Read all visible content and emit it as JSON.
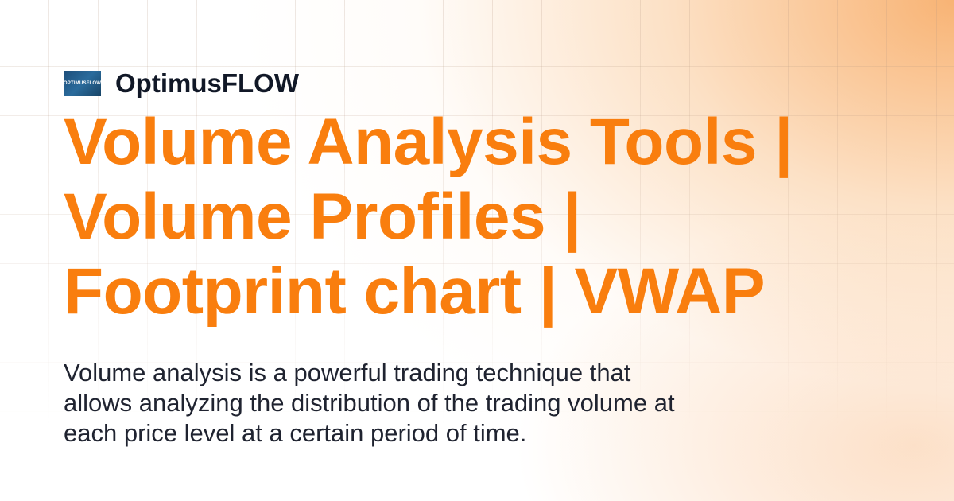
{
  "brand": {
    "name": "OptimusFLOW",
    "logo_text": "OPTIMUSFLOW"
  },
  "title_lines": [
    "Volume Analysis Tools |",
    "Volume Profiles |",
    "Footprint chart | VWAP"
  ],
  "description": "Volume analysis is a powerful trading technique that allows analyzing the distribution of the trading volume at each price level at a certain period of time.",
  "colors": {
    "accent": "#f97e0e",
    "text": "#111827",
    "background_glow": "#f7a65c"
  }
}
